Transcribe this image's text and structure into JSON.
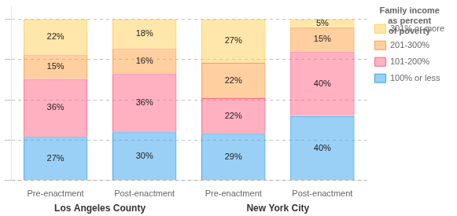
{
  "chart_data": {
    "type": "bar",
    "stacked": true,
    "categories": [
      "Pre-enactment",
      "Post-enactment",
      "Pre-enactment",
      "Post-enactment"
    ],
    "groups": [
      "Los Angeles County",
      "Los Angeles County",
      "New York City",
      "New York City"
    ],
    "series": [
      {
        "name": "100% or less",
        "values": [
          27,
          30,
          29,
          40
        ],
        "value_labels": [
          "27%",
          "30%",
          "29%",
          "40%"
        ]
      },
      {
        "name": "101-200%",
        "values": [
          36,
          36,
          22,
          40
        ],
        "value_labels": [
          "36%",
          "36%",
          "22%",
          "40%"
        ]
      },
      {
        "name": "201-300%",
        "values": [
          15,
          16,
          22,
          15
        ],
        "value_labels": [
          "15%",
          "16%",
          "22%",
          "15%"
        ]
      },
      {
        "name": "301% or more",
        "values": [
          22,
          18,
          27,
          5
        ],
        "value_labels": [
          "22%",
          "18%",
          "27%",
          "5%"
        ]
      }
    ],
    "ylim": [
      0,
      108
    ],
    "yticks": [
      0,
      25,
      50,
      75,
      100
    ],
    "grid": true,
    "tick_labels": "x",
    "data_labels": true,
    "legend": "right",
    "legend_title": "Family income\nas percent\nof poverty"
  }
}
